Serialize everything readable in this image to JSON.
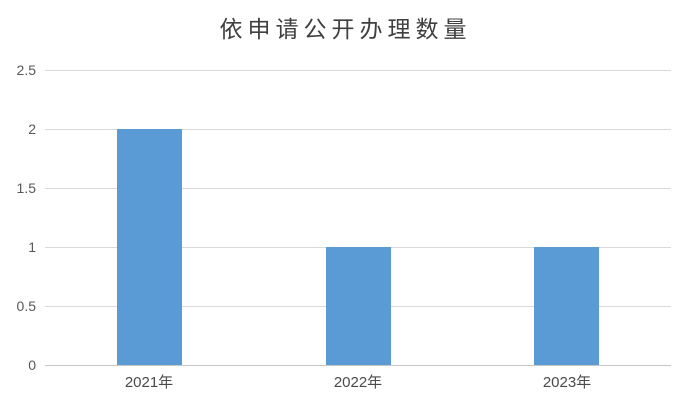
{
  "chart": {
    "y_ticks": [
      "2.5",
      "2",
      "1.5",
      "1",
      "0.5",
      "0"
    ],
    "colors": {
      "bar": "#5b9bd5",
      "gridline": "#d9d9d9",
      "axis_line": "#c6c6c6",
      "title_text": "#404040",
      "tick_text": "#595959",
      "background": "#ffffff"
    }
  },
  "chart_data": {
    "type": "bar",
    "title": "依申请公开办理数量",
    "categories": [
      "2021年",
      "2022年",
      "2023年"
    ],
    "values": [
      2,
      1,
      1
    ],
    "xlabel": "",
    "ylabel": "",
    "ylim": [
      0,
      2.5
    ],
    "ytick_step": 0.5,
    "grid": true,
    "legend_position": "none"
  }
}
